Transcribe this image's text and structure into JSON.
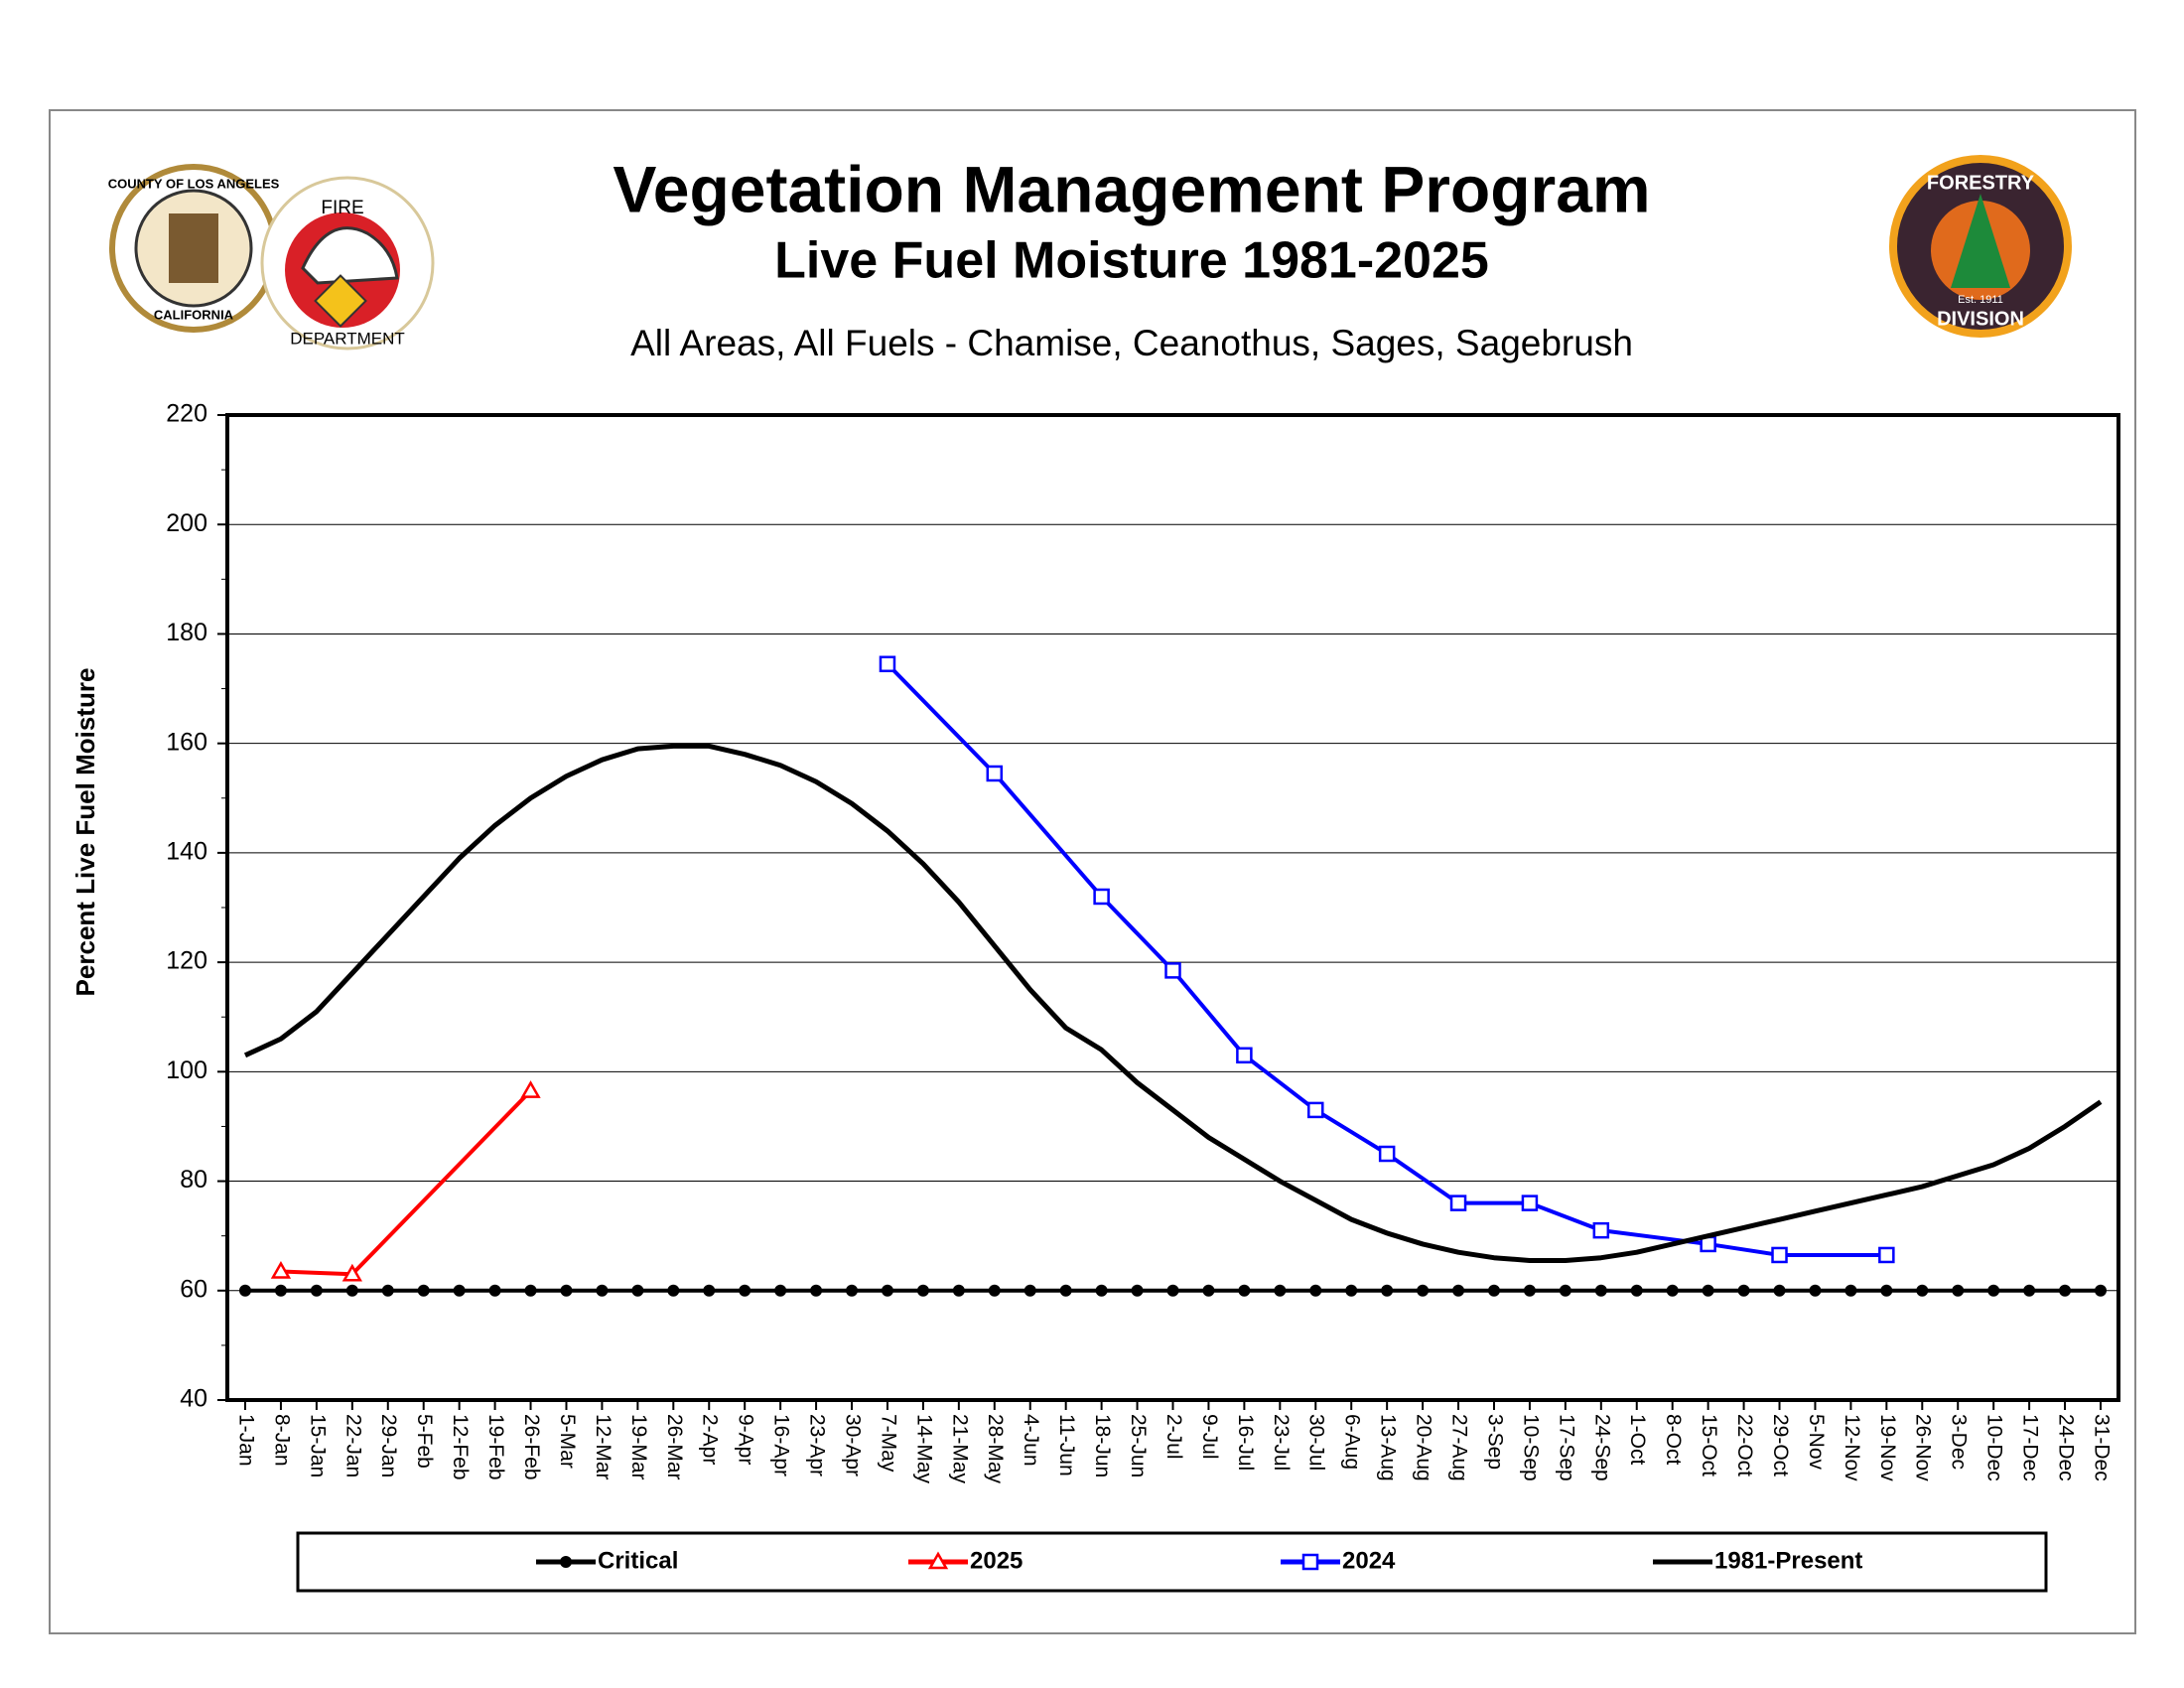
{
  "logos": {
    "left_seal": [
      "COUNTY OF LOS ANGELES",
      "CALIFORNIA"
    ],
    "left_badge": [
      "FIRE",
      "DEPARTMENT"
    ],
    "right": [
      "FORESTRY",
      "Est. 1911",
      "DIVISION"
    ]
  },
  "chart_data": {
    "type": "line",
    "title": "Vegetation Management Program",
    "subtitle": "Live Fuel Moisture 1981-2025",
    "caption": "All Areas, All Fuels - Chamise, Ceanothus, Sages, Sagebrush",
    "y_label": "Percent Live Fuel Moisture",
    "categories": [
      "1-Jan",
      "8-Jan",
      "15-Jan",
      "22-Jan",
      "29-Jan",
      "5-Feb",
      "12-Feb",
      "19-Feb",
      "26-Feb",
      "5-Mar",
      "12-Mar",
      "19-Mar",
      "26-Mar",
      "2-Apr",
      "9-Apr",
      "16-Apr",
      "23-Apr",
      "30-Apr",
      "7-May",
      "14-May",
      "21-May",
      "28-May",
      "4-Jun",
      "11-Jun",
      "18-Jun",
      "25-Jun",
      "2-Jul",
      "9-Jul",
      "16-Jul",
      "23-Jul",
      "30-Jul",
      "6-Aug",
      "13-Aug",
      "20-Aug",
      "27-Aug",
      "3-Sep",
      "10-Sep",
      "17-Sep",
      "24-Sep",
      "1-Oct",
      "8-Oct",
      "15-Oct",
      "22-Oct",
      "29-Oct",
      "5-Nov",
      "12-Nov",
      "19-Nov",
      "26-Nov",
      "3-Dec",
      "10-Dec",
      "17-Dec",
      "24-Dec",
      "31-Dec"
    ],
    "series": [
      {
        "name": "Critical",
        "color": "#000000",
        "marker": "circle",
        "values": [
          60,
          60,
          60,
          60,
          60,
          60,
          60,
          60,
          60,
          60,
          60,
          60,
          60,
          60,
          60,
          60,
          60,
          60,
          60,
          60,
          60,
          60,
          60,
          60,
          60,
          60,
          60,
          60,
          60,
          60,
          60,
          60,
          60,
          60,
          60,
          60,
          60,
          60,
          60,
          60,
          60,
          60,
          60,
          60,
          60,
          60,
          60,
          60,
          60,
          60,
          60,
          60,
          60
        ]
      },
      {
        "name": "2025",
        "color": "#ff0000",
        "marker": "triangle",
        "values": [
          null,
          63.5,
          null,
          63,
          null,
          null,
          null,
          null,
          96.5,
          null,
          null,
          null,
          null,
          null,
          null,
          null,
          null,
          null,
          null,
          null,
          null,
          null,
          null,
          null,
          null,
          null,
          null,
          null,
          null,
          null,
          null,
          null,
          null,
          null,
          null,
          null,
          null,
          null,
          null,
          null,
          null,
          null,
          null,
          null,
          null,
          null,
          null,
          null,
          null,
          null,
          null,
          null,
          null
        ]
      },
      {
        "name": "2024",
        "color": "#0000ff",
        "marker": "square",
        "values": [
          null,
          null,
          null,
          null,
          null,
          null,
          null,
          null,
          null,
          null,
          null,
          null,
          null,
          null,
          null,
          null,
          null,
          null,
          174.5,
          null,
          null,
          154.5,
          null,
          null,
          132,
          null,
          118.5,
          null,
          103,
          null,
          93,
          null,
          85,
          null,
          76,
          null,
          76,
          null,
          71,
          null,
          null,
          68.5,
          null,
          66.5,
          null,
          null,
          66.5,
          null,
          null,
          null,
          null,
          null,
          null
        ]
      },
      {
        "name": "1981-Present",
        "color": "#000000",
        "marker": "none",
        "values": [
          103,
          106,
          111,
          118,
          125,
          132,
          139,
          145,
          150,
          154,
          157,
          159,
          159.5,
          159.5,
          158,
          156,
          153,
          149,
          144,
          138,
          131,
          123,
          115,
          108,
          104,
          98,
          93,
          88,
          84,
          80,
          76.5,
          73,
          70.5,
          68.5,
          67,
          66,
          65.5,
          65.5,
          66,
          67,
          68.5,
          70,
          71.5,
          73,
          74.5,
          76,
          77.5,
          79,
          81,
          83,
          86,
          90,
          94.5
        ]
      }
    ],
    "ylim": [
      40,
      220
    ],
    "yticks": [
      40,
      60,
      80,
      100,
      120,
      140,
      160,
      180,
      200,
      220
    ],
    "grid": true,
    "legend": "bottom"
  }
}
